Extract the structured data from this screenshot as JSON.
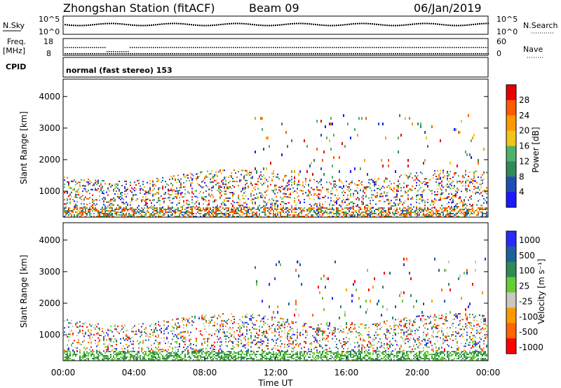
{
  "header": {
    "station": "Zhongshan Station (fitACF)",
    "beam": "Beam 09",
    "date": "06/Jan/2019"
  },
  "top_panels": {
    "nsky_label": "N.Sky",
    "nsky_tick_hi": "10^5",
    "nsky_tick_lo": "10^0",
    "nsearch_label": "N.Search",
    "nsearch_tick_hi": "10^5",
    "nsearch_tick_lo": "10^0",
    "freq_label_1": "Freq.",
    "freq_label_2": "[MHz]",
    "freq_tick_hi": "18",
    "freq_tick_lo": "8",
    "nave_label": "Nave",
    "nave_tick_hi": "60",
    "nave_tick_lo": "0",
    "cpid_label": "CPID",
    "cpid_text": "normal (fast stereo) 153"
  },
  "chart_data": [
    {
      "type": "heatmap",
      "name": "power",
      "ylabel": "Slant Range [km]",
      "yticks": [
        "1000",
        "2000",
        "3000",
        "4000"
      ],
      "ylim": [
        180,
        4550
      ],
      "xlim_hours": [
        0,
        24
      ],
      "colorbar_label": "Power [dB]",
      "colorbar_ticks": [
        "4",
        "8",
        "12",
        "16",
        "20",
        "24",
        "28"
      ],
      "colors": [
        "#1a1aff",
        "#1f4fb5",
        "#2e8b57",
        "#4db36a",
        "#f0c419",
        "#ff9900",
        "#ff5a00",
        "#e60000"
      ]
    },
    {
      "type": "heatmap",
      "name": "velocity",
      "ylabel": "Slant Range [km]",
      "yticks": [
        "1000",
        "2000",
        "3000",
        "4000"
      ],
      "ylim": [
        180,
        4550
      ],
      "xlim_hours": [
        0,
        24
      ],
      "colorbar_label": "Velocity [m s⁻¹]",
      "colorbar_ticks": [
        "1000",
        "500",
        "100",
        "25",
        "-25",
        "-100",
        "-500",
        "-1000"
      ],
      "colors": [
        "#2a2aff",
        "#1f5fa0",
        "#2e8b57",
        "#66cc33",
        "#c8c8c0",
        "#ff9900",
        "#ff6600",
        "#ff0000"
      ]
    }
  ],
  "x_axis": {
    "label": "Time UT",
    "ticks": [
      "00:00",
      "04:00",
      "08:00",
      "12:00",
      "16:00",
      "20:00",
      "00:00"
    ]
  }
}
